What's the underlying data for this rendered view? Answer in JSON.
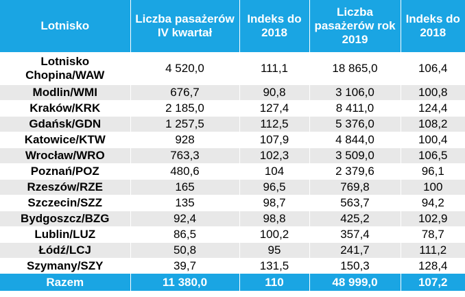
{
  "colors": {
    "header_bg": "#1aa5e3",
    "header_text": "#ffffff",
    "stripe_even": "#e8e8e8",
    "stripe_odd": "#ffffff"
  },
  "table": {
    "headers": [
      "Lotnisko",
      "Liczba pasażerów IV kwartał",
      "Indeks do 2018",
      "Liczba pasażerów rok 2019",
      "Indeks do 2018"
    ],
    "rows": [
      [
        "Lotnisko Chopina/WAW",
        "4 520,0",
        "111,1",
        "18 865,0",
        "106,4"
      ],
      [
        "Modlin/WMI",
        "676,7",
        "90,8",
        "3 106,0",
        "100,8"
      ],
      [
        "Kraków/KRK",
        "2 185,0",
        "127,4",
        "8 411,0",
        "124,4"
      ],
      [
        "Gdańsk/GDN",
        "1 257,5",
        "112,5",
        "5 376,0",
        "108,2"
      ],
      [
        "Katowice/KTW",
        "928",
        "107,9",
        "4 844,0",
        "100,4"
      ],
      [
        "Wrocław/WRO",
        "763,3",
        "102,3",
        "3 509,0",
        "106,5"
      ],
      [
        "Poznań/POZ",
        "480,6",
        "104",
        "2 379,6",
        "96,1"
      ],
      [
        "Rzeszów/RZE",
        "165",
        "96,5",
        "769,8",
        "100"
      ],
      [
        "Szczecin/SZZ",
        "135",
        "98,7",
        "563,7",
        "94,2"
      ],
      [
        "Bydgoszcz/BZG",
        "92,4",
        "98,8",
        "425,2",
        "102,9"
      ],
      [
        "Lublin/LUZ",
        "86,5",
        "100,2",
        "357,4",
        "78,7"
      ],
      [
        "Łódź/LCJ",
        "50,8",
        "95",
        "241,7",
        "111,2"
      ],
      [
        "Szymany/SZY",
        "39,7",
        "131,5",
        "150,3",
        "128,4"
      ]
    ],
    "total": [
      "Razem",
      "11 380,0",
      "110",
      "48 999,0",
      "107,2"
    ]
  }
}
